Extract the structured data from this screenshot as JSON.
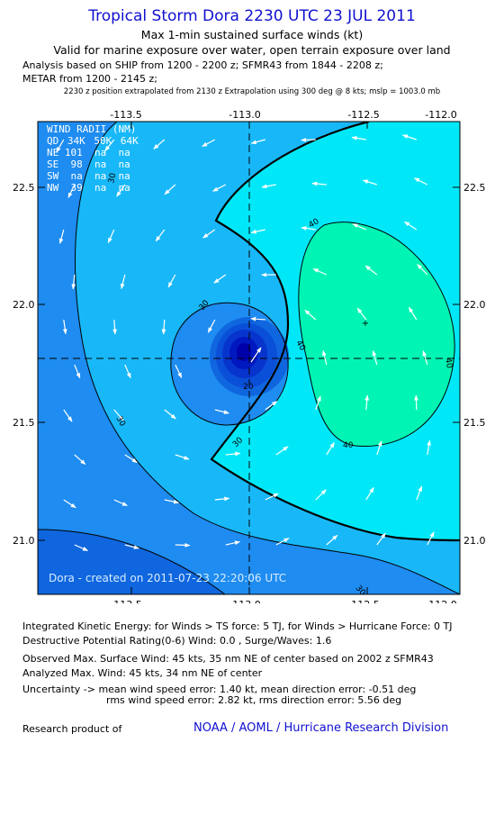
{
  "header": {
    "title": "Tropical Storm Dora 2230 UTC 23 JUL 2011",
    "subtitle1": "Max 1-min sustained surface winds (kt)",
    "subtitle2": "Valid for marine exposure over water, open terrain exposure over land",
    "analysis_line": "Analysis based on SHIP from 1200 - 2200 z; SFMR43 from 1844 - 2208 z;",
    "metar_line": "METAR from 1200 - 2145 z;",
    "position_line": "2230 z position extrapolated from 2130 z Extrapolation using 300 deg @ 8 kts; mslp = 1003.0 mb"
  },
  "map": {
    "x_ticks": [
      "-113.5",
      "-113.0",
      "-112.5",
      "-112.0"
    ],
    "y_ticks": [
      "22.5",
      "22.0",
      "21.5",
      "21.0"
    ],
    "wind_radii": {
      "title": "WIND RADII (NM)",
      "header": [
        "QD",
        "34K",
        "50K",
        "64K"
      ],
      "rows": [
        [
          "NE",
          "101",
          "na",
          "na"
        ],
        [
          "SE",
          "98",
          "na",
          "na"
        ],
        [
          "SW",
          "na",
          "na",
          "na"
        ],
        [
          "NW",
          "39",
          "na",
          "na"
        ]
      ]
    },
    "contour_labels": [
      "30",
      "30",
      "30",
      "30",
      "30",
      "40",
      "40",
      "40",
      "40"
    ],
    "center_label": "20",
    "credit": "Dora - created on 2011-07-23 22:20:06 UTC",
    "colors": {
      "lt20": "#0000c8",
      "c20_25": "#0040e0",
      "c25_30": "#1e8cf0",
      "c30_34": "#18b8f8",
      "c34_40": "#00e8f8",
      "c40_50": "#00f5b4"
    }
  },
  "footer": {
    "ike": "Integrated Kinetic Energy:  for Winds > TS force: 5 TJ,  for Winds > Hurricane Force: 0 TJ",
    "dpr": "Destructive Potential Rating(0-6)   Wind: 0.0 , Surge/Waves: 1.6",
    "obs": "Observed Max. Surface Wind: 45 kts, 35 nm NE of center based on 2002 z SFMR43",
    "analyzed": "Analyzed Max. Wind: 45 kts, 34 nm NE of center",
    "unc1": "Uncertainty -> mean wind speed error: 1.40 kt,   mean direction error:  -0.51 deg",
    "unc2": "rms wind speed error: 2.82 kt,   rms direction error: 5.56 deg",
    "research": "Research product of",
    "org": "NOAA / AOML / Hurricane Research Division"
  }
}
